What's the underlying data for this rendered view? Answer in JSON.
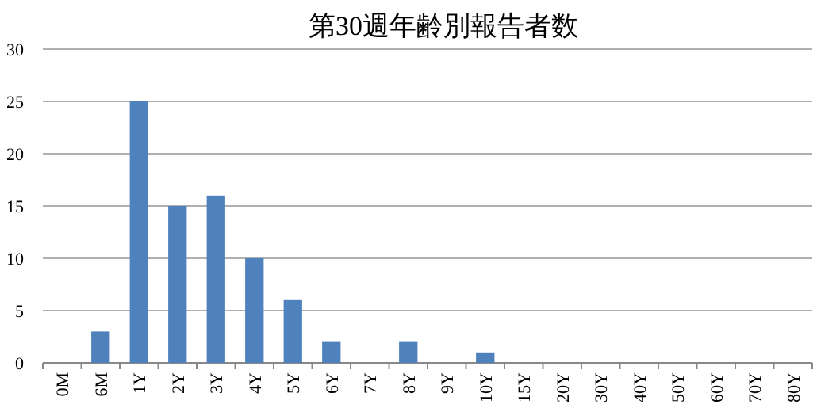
{
  "chart_data": {
    "type": "bar",
    "title": "第30週年齢別報告者数",
    "categories": [
      "0M",
      "6M",
      "1Y",
      "2Y",
      "3Y",
      "4Y",
      "5Y",
      "6Y",
      "7Y",
      "8Y",
      "9Y",
      "10Y",
      "15Y",
      "20Y",
      "30Y",
      "40Y",
      "50Y",
      "60Y",
      "70Y",
      "80Y"
    ],
    "values": [
      0,
      3,
      25,
      15,
      16,
      10,
      6,
      2,
      0,
      2,
      0,
      1,
      0,
      0,
      0,
      0,
      0,
      0,
      0,
      0
    ],
    "color": "#4f81bd",
    "ylim": [
      0,
      30
    ],
    "yticks": [
      0,
      5,
      10,
      15,
      20,
      25,
      30
    ],
    "grid": "y"
  }
}
